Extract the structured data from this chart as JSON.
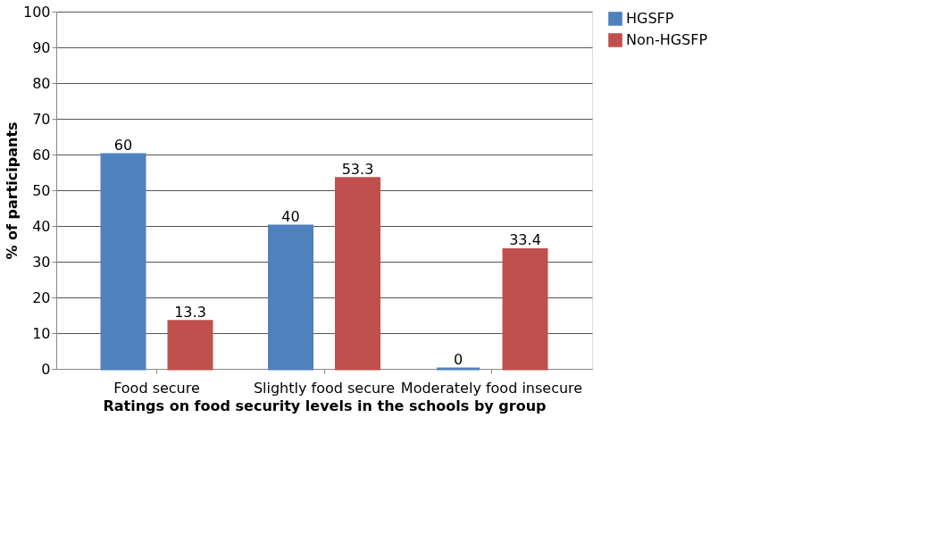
{
  "chart_data": {
    "type": "bar",
    "xlabel": "Ratings on food security levels in the schools by group",
    "ylabel": "% of participants",
    "categories": [
      "Food secure",
      "Slightly food secure",
      "Moderately food insecure"
    ],
    "series": [
      {
        "name": "HGSFP",
        "color": "#4f81bd",
        "values": [
          60,
          40,
          0
        ]
      },
      {
        "name": "Non-HGSFP",
        "color": "#c0504d",
        "values": [
          13.3,
          53.3,
          33.4
        ]
      }
    ],
    "ylim": [
      0,
      100
    ],
    "yticks": [
      0,
      10,
      20,
      30,
      40,
      50,
      60,
      70,
      80,
      90,
      100
    ],
    "grid": "y",
    "legend": "right",
    "data_labels": true
  }
}
